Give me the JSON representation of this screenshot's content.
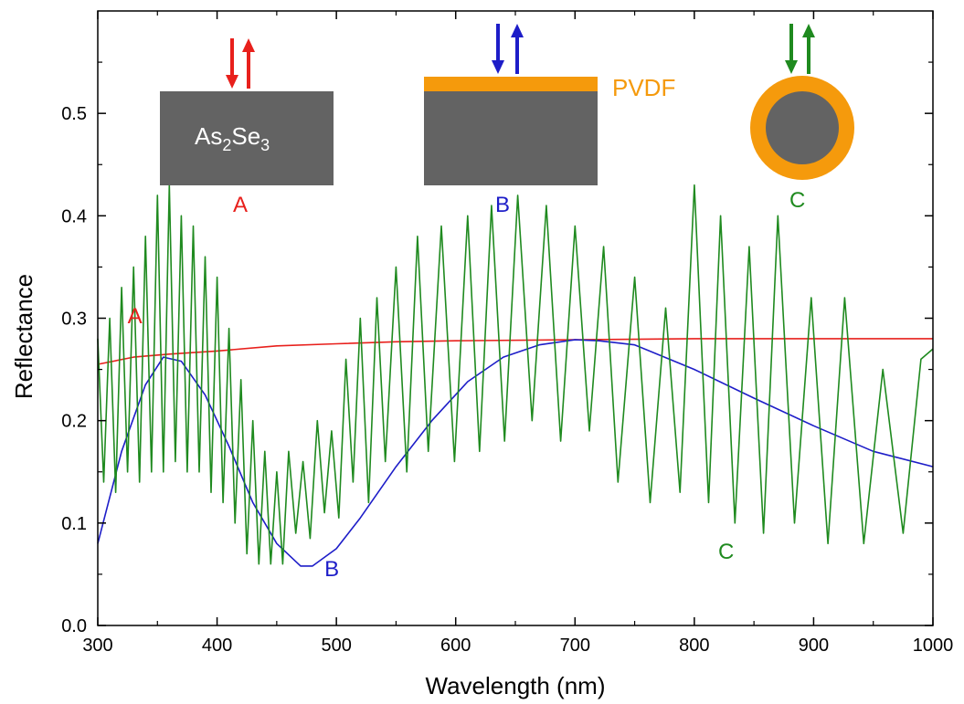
{
  "chart_data": {
    "type": "line",
    "title": "",
    "xlabel": "Wavelength (nm)",
    "ylabel": "Reflectance",
    "xlim": [
      300,
      1000
    ],
    "ylim": [
      0.0,
      0.6
    ],
    "xticks": [
      300,
      400,
      500,
      600,
      700,
      800,
      900,
      1000
    ],
    "yticks": [
      0.0,
      0.1,
      0.2,
      0.3,
      0.4,
      0.5
    ],
    "ytick_labels": [
      "0.0",
      "0.1",
      "0.2",
      "0.3",
      "0.4",
      "0.5"
    ],
    "grid": false,
    "series": [
      {
        "name": "A",
        "color": "#e8201c",
        "x": [
          300,
          330,
          360,
          400,
          450,
          500,
          550,
          600,
          700,
          800,
          900,
          1000
        ],
        "y": [
          0.255,
          0.262,
          0.265,
          0.268,
          0.273,
          0.275,
          0.277,
          0.278,
          0.279,
          0.28,
          0.28,
          0.28
        ]
      },
      {
        "name": "B",
        "color": "#1d1dc8",
        "x": [
          300,
          320,
          340,
          355,
          370,
          390,
          410,
          430,
          450,
          470,
          480,
          500,
          520,
          550,
          580,
          610,
          640,
          670,
          700,
          720,
          750,
          800,
          850,
          900,
          950,
          1000
        ],
        "y": [
          0.08,
          0.17,
          0.235,
          0.262,
          0.258,
          0.225,
          0.175,
          0.12,
          0.08,
          0.058,
          0.058,
          0.075,
          0.105,
          0.155,
          0.2,
          0.238,
          0.262,
          0.274,
          0.279,
          0.278,
          0.274,
          0.25,
          0.222,
          0.195,
          0.17,
          0.155
        ]
      },
      {
        "name": "C",
        "color": "#1f8a1f",
        "x": [
          300,
          305,
          310,
          315,
          320,
          325,
          330,
          335,
          340,
          345,
          350,
          355,
          360,
          365,
          370,
          375,
          380,
          385,
          390,
          395,
          400,
          405,
          410,
          415,
          420,
          425,
          430,
          435,
          440,
          445,
          450,
          455,
          460,
          466,
          472,
          478,
          484,
          490,
          496,
          502,
          508,
          514,
          520,
          527,
          534,
          541,
          550,
          559,
          568,
          577,
          588,
          599,
          610,
          620,
          630,
          641,
          652,
          664,
          676,
          688,
          700,
          712,
          724,
          736,
          750,
          763,
          776,
          788,
          800,
          812,
          822,
          834,
          846,
          858,
          870,
          884,
          898,
          912,
          926,
          942,
          958,
          975,
          990,
          1000
        ],
        "y": [
          0.28,
          0.14,
          0.3,
          0.13,
          0.33,
          0.15,
          0.35,
          0.14,
          0.38,
          0.15,
          0.42,
          0.15,
          0.43,
          0.16,
          0.4,
          0.15,
          0.39,
          0.15,
          0.36,
          0.13,
          0.34,
          0.12,
          0.29,
          0.1,
          0.24,
          0.07,
          0.2,
          0.06,
          0.17,
          0.06,
          0.15,
          0.06,
          0.17,
          0.09,
          0.16,
          0.085,
          0.2,
          0.11,
          0.19,
          0.105,
          0.26,
          0.14,
          0.3,
          0.12,
          0.32,
          0.16,
          0.35,
          0.15,
          0.38,
          0.17,
          0.39,
          0.16,
          0.4,
          0.17,
          0.41,
          0.18,
          0.42,
          0.2,
          0.41,
          0.18,
          0.39,
          0.19,
          0.37,
          0.14,
          0.34,
          0.12,
          0.31,
          0.13,
          0.43,
          0.12,
          0.4,
          0.1,
          0.37,
          0.09,
          0.4,
          0.1,
          0.32,
          0.08,
          0.32,
          0.08,
          0.25,
          0.09,
          0.26,
          0.27
        ]
      }
    ],
    "series_labels": [
      {
        "text": "A",
        "color": "#e8201c",
        "x": 325,
        "y": 0.295
      },
      {
        "text": "B",
        "color": "#1d1dc8",
        "x": 490,
        "y": 0.048
      },
      {
        "text": "C",
        "color": "#1f8a1f",
        "x": 820,
        "y": 0.065
      }
    ],
    "insets": {
      "A": {
        "material_base": "As",
        "sub1": "2",
        "material_mid": "Se",
        "sub2": "3",
        "label": "A",
        "label_color": "#e8201c",
        "arrow_color": "#e8201c"
      },
      "B": {
        "coating_label": "PVDF",
        "label": "B",
        "label_color": "#1d1dc8",
        "arrow_color": "#1d1dc8",
        "coating_color": "#f59a0c"
      },
      "C": {
        "label": "C",
        "label_color": "#1f8a1f",
        "arrow_color": "#1f8a1f",
        "coating_color": "#f59a0c"
      }
    },
    "substrate_color": "#636363"
  }
}
